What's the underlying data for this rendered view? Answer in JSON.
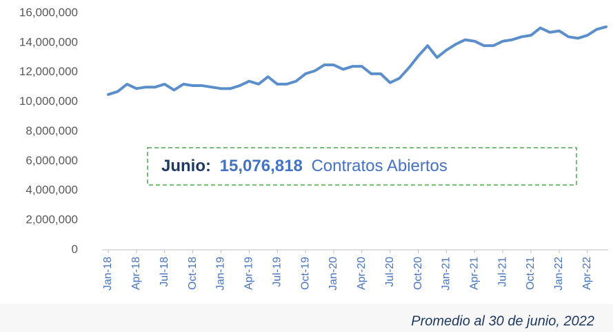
{
  "chart_data": {
    "type": "line",
    "categories": [
      "Jan-18",
      null,
      null,
      "Apr-18",
      null,
      null,
      "Jul-18",
      null,
      null,
      "Oct-18",
      null,
      null,
      "Jan-19",
      null,
      null,
      "Apr-19",
      null,
      null,
      "Jul-19",
      null,
      null,
      "Oct-19",
      null,
      null,
      "Jan-20",
      null,
      null,
      "Apr-20",
      null,
      null,
      "Jul-20",
      null,
      null,
      "Oct-20",
      null,
      null,
      "Jan-21",
      null,
      null,
      "Apr-21",
      null,
      null,
      "Jul-21",
      null,
      null,
      "Oct-21",
      null,
      null,
      "Jan-22",
      null,
      null,
      "Apr-22",
      null,
      null
    ],
    "values": [
      10500000,
      10700000,
      11200000,
      10900000,
      11000000,
      11000000,
      11200000,
      10800000,
      11200000,
      11100000,
      11100000,
      11000000,
      10900000,
      10900000,
      11100000,
      11400000,
      11200000,
      11700000,
      11200000,
      11200000,
      11400000,
      11900000,
      12100000,
      12500000,
      12500000,
      12200000,
      12400000,
      12400000,
      11900000,
      11900000,
      11300000,
      11600000,
      12300000,
      13100000,
      13800000,
      13000000,
      13500000,
      13900000,
      14200000,
      14100000,
      13800000,
      13800000,
      14100000,
      14200000,
      14400000,
      14500000,
      15000000,
      14700000,
      14800000,
      14400000,
      14300000,
      14500000,
      14900000,
      15076818
    ],
    "color": "#5b8fcc",
    "ylim": [
      0,
      16000000
    ],
    "yticks": [
      0,
      {
        "value": 2000000,
        "label": "2,000,000"
      },
      {
        "value": 4000000,
        "label": "4,000,000"
      },
      {
        "value": 6000000,
        "label": "6,000,000"
      },
      {
        "value": 8000000,
        "label": "8,000,000"
      },
      {
        "value": 10000000,
        "label": "10,000,000"
      },
      {
        "value": 12000000,
        "label": "12,000,000"
      },
      {
        "value": 14000000,
        "label": "14,000,000"
      },
      {
        "value": 16000000,
        "label": "16,000,000"
      }
    ],
    "grid": false,
    "annotation": {
      "label": "Junio:",
      "value": "15,076,818",
      "text": "Contratos Abiertos"
    },
    "footnote": "Promedio al 30 de junio, 2022"
  }
}
